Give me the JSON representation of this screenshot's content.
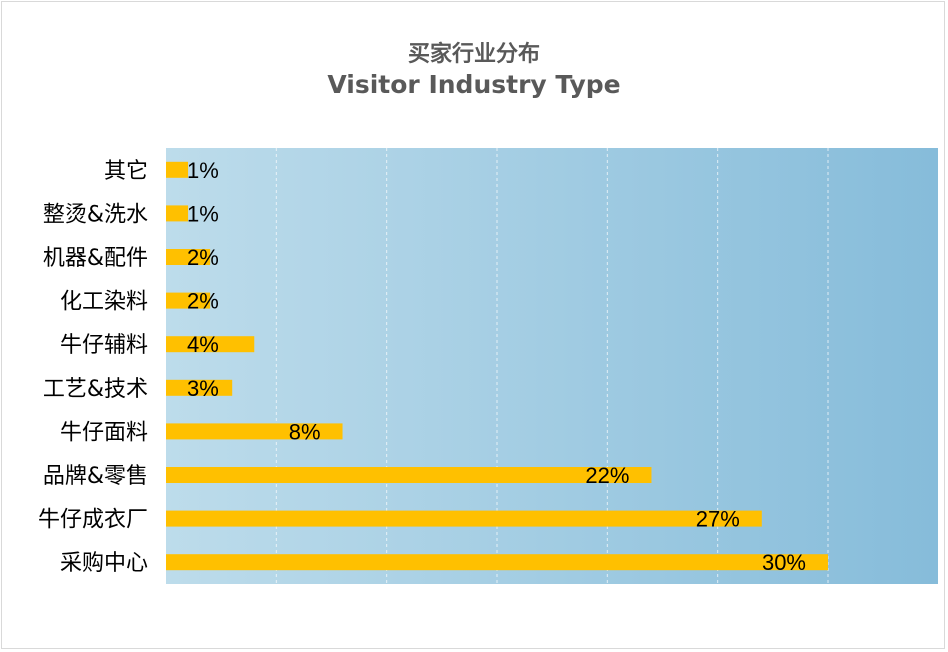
{
  "chart_data": {
    "type": "bar",
    "orientation": "horizontal",
    "title": "买家行业分布",
    "subtitle": "Visitor Industry Type",
    "categories": [
      "其它",
      "整烫&洗水",
      "机器&配件",
      "化工染料",
      "牛仔辅料",
      "工艺&技术",
      "牛仔面料",
      "品牌&零售",
      "牛仔成衣厂",
      "采购中心"
    ],
    "values": [
      1,
      1,
      2,
      2,
      4,
      3,
      8,
      22,
      27,
      30
    ],
    "value_labels": [
      "1%",
      "1%",
      "2%",
      "2%",
      "4%",
      "3%",
      "8%",
      "22%",
      "27%",
      "30%"
    ],
    "unit": "%",
    "xlim": [
      0,
      35
    ],
    "grid": true,
    "legend": "none",
    "colors": {
      "bar": "#FFC000",
      "plot_bg_start": "#BDDCEB",
      "plot_bg_end": "#86BCDA",
      "gridline": "#FFFFFF",
      "title": "#595959"
    }
  }
}
